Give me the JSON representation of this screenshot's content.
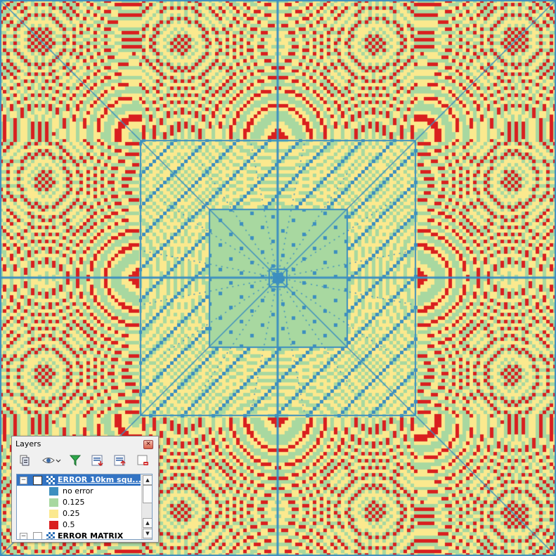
{
  "map": {
    "colors": {
      "no_error": "#3d8fbf",
      "c0125": "#a8d8a0",
      "c025": "#fbe98e",
      "c05": "#d91f1f",
      "grid_line": "#3d8fbf"
    }
  },
  "layers_panel": {
    "title": "Layers",
    "close_icon": "close-icon",
    "toolbar": [
      {
        "name": "add-group-icon"
      },
      {
        "name": "manage-visibility-icon"
      },
      {
        "name": "filter-legend-icon"
      },
      {
        "name": "expand-all-icon"
      },
      {
        "name": "collapse-all-icon"
      },
      {
        "name": "remove-layer-icon"
      }
    ],
    "layers": [
      {
        "name": "ERROR 10km squ...",
        "checked": true,
        "selected": true,
        "expanded": true,
        "legend": [
          {
            "label": "no error",
            "color": "#3d8fbf"
          },
          {
            "label": "0.125",
            "color": "#a8d8a0"
          },
          {
            "label": "0.25",
            "color": "#fbe98e"
          },
          {
            "label": "0.5",
            "color": "#d91f1f"
          }
        ]
      },
      {
        "name": "ERROR MATRIX",
        "checked": false,
        "selected": false,
        "expanded": true
      }
    ]
  }
}
